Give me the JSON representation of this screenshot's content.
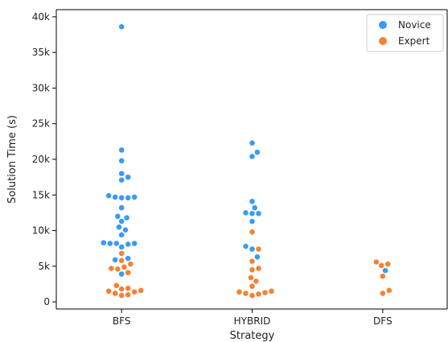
{
  "chart_data": {
    "type": "scatter",
    "subtype": "swarm",
    "title": "",
    "xlabel": "Strategy",
    "ylabel": "Solution Time (s)",
    "categories": [
      "BFS",
      "HYBRID",
      "DFS"
    ],
    "ylim": [
      -1000,
      41000
    ],
    "yticks": [
      0,
      5000,
      10000,
      15000,
      20000,
      25000,
      30000,
      35000,
      40000
    ],
    "ytick_labels": [
      "0",
      "5k",
      "10k",
      "15k",
      "20k",
      "25k",
      "30k",
      "35k",
      "40k"
    ],
    "grid": false,
    "legend": {
      "position": "top-right",
      "entries": [
        "Novice",
        "Expert"
      ]
    },
    "series": [
      {
        "name": "Novice",
        "color": "#3a9bf4",
        "points": [
          {
            "category": "BFS",
            "values": [
              38600,
              21300,
              19800,
              18000,
              17500,
              17100,
              14900,
              14700,
              14600,
              14600,
              14700,
              13200,
              12000,
              11800,
              11300,
              10500,
              10100,
              9400,
              8300,
              8200,
              8200,
              8200,
              8100,
              7700,
              6100,
              5900,
              3900
            ]
          },
          {
            "category": "HYBRID",
            "values": [
              22300,
              21000,
              20400,
              14100,
              13200,
              12500,
              12400,
              12400,
              11300,
              7800,
              7400,
              6300
            ]
          },
          {
            "category": "DFS",
            "values": [
              4400
            ]
          }
        ]
      },
      {
        "name": "Expert",
        "color": "#f58233",
        "points": [
          {
            "category": "BFS",
            "values": [
              6800,
              5800,
              5300,
              4900,
              4700,
              4600,
              4100,
              2300,
              1900,
              1800,
              1600,
              1500,
              1400,
              1200,
              1000,
              900
            ]
          },
          {
            "category": "HYBRID",
            "values": [
              9800,
              7400,
              5700,
              4700,
              4500,
              3400,
              2900,
              2200,
              1500,
              1400,
              1300,
              1200,
              1100,
              900
            ]
          },
          {
            "category": "DFS",
            "values": [
              5600,
              5300,
              5100,
              3600,
              1600,
              1200
            ]
          }
        ]
      }
    ]
  }
}
